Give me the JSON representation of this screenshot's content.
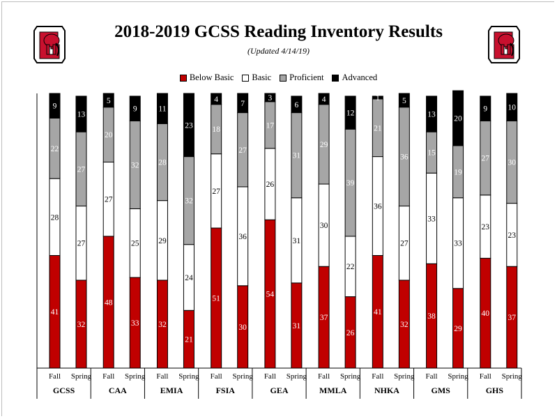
{
  "header": {
    "title": "2018-2019 GCSS Reading Inventory Results",
    "subtitle": "(Updated 4/14/19)"
  },
  "logos": [
    "elephant-g-logo",
    "elephant-g-logo"
  ],
  "colors": {
    "below_basic": "#c00000",
    "basic": "#ffffff",
    "proficient": "#a6a6a6",
    "advanced": "#000000"
  },
  "chart_data": {
    "type": "bar",
    "stacked": true,
    "legend": {
      "placement": "top-center",
      "entries": [
        "Below Basic",
        "Basic",
        "Proficient",
        "Advanced"
      ]
    },
    "groups": [
      "GCSS",
      "CAA",
      "EMIA",
      "FSIA",
      "GEA",
      "MMLA",
      "NHKA",
      "GMS",
      "GHS"
    ],
    "terms": [
      "Fall",
      "Spring"
    ],
    "series": [
      {
        "name": "Below Basic",
        "values": [
          41,
          32,
          48,
          33,
          32,
          21,
          51,
          30,
          54,
          31,
          37,
          26,
          41,
          32,
          38,
          29,
          40,
          37
        ]
      },
      {
        "name": "Basic",
        "values": [
          28,
          27,
          27,
          25,
          29,
          24,
          27,
          36,
          26,
          31,
          30,
          22,
          36,
          27,
          33,
          33,
          23,
          23
        ]
      },
      {
        "name": "Proficient",
        "values": [
          22,
          27,
          20,
          32,
          28,
          32,
          18,
          27,
          17,
          31,
          29,
          39,
          21,
          36,
          15,
          19,
          27,
          30
        ]
      },
      {
        "name": "Advanced",
        "values": [
          9,
          13,
          5,
          9,
          11,
          23,
          4,
          7,
          3,
          6,
          4,
          12,
          1,
          5,
          13,
          20,
          9,
          10
        ]
      }
    ],
    "ylim": [
      0,
      100
    ],
    "grid": false
  }
}
